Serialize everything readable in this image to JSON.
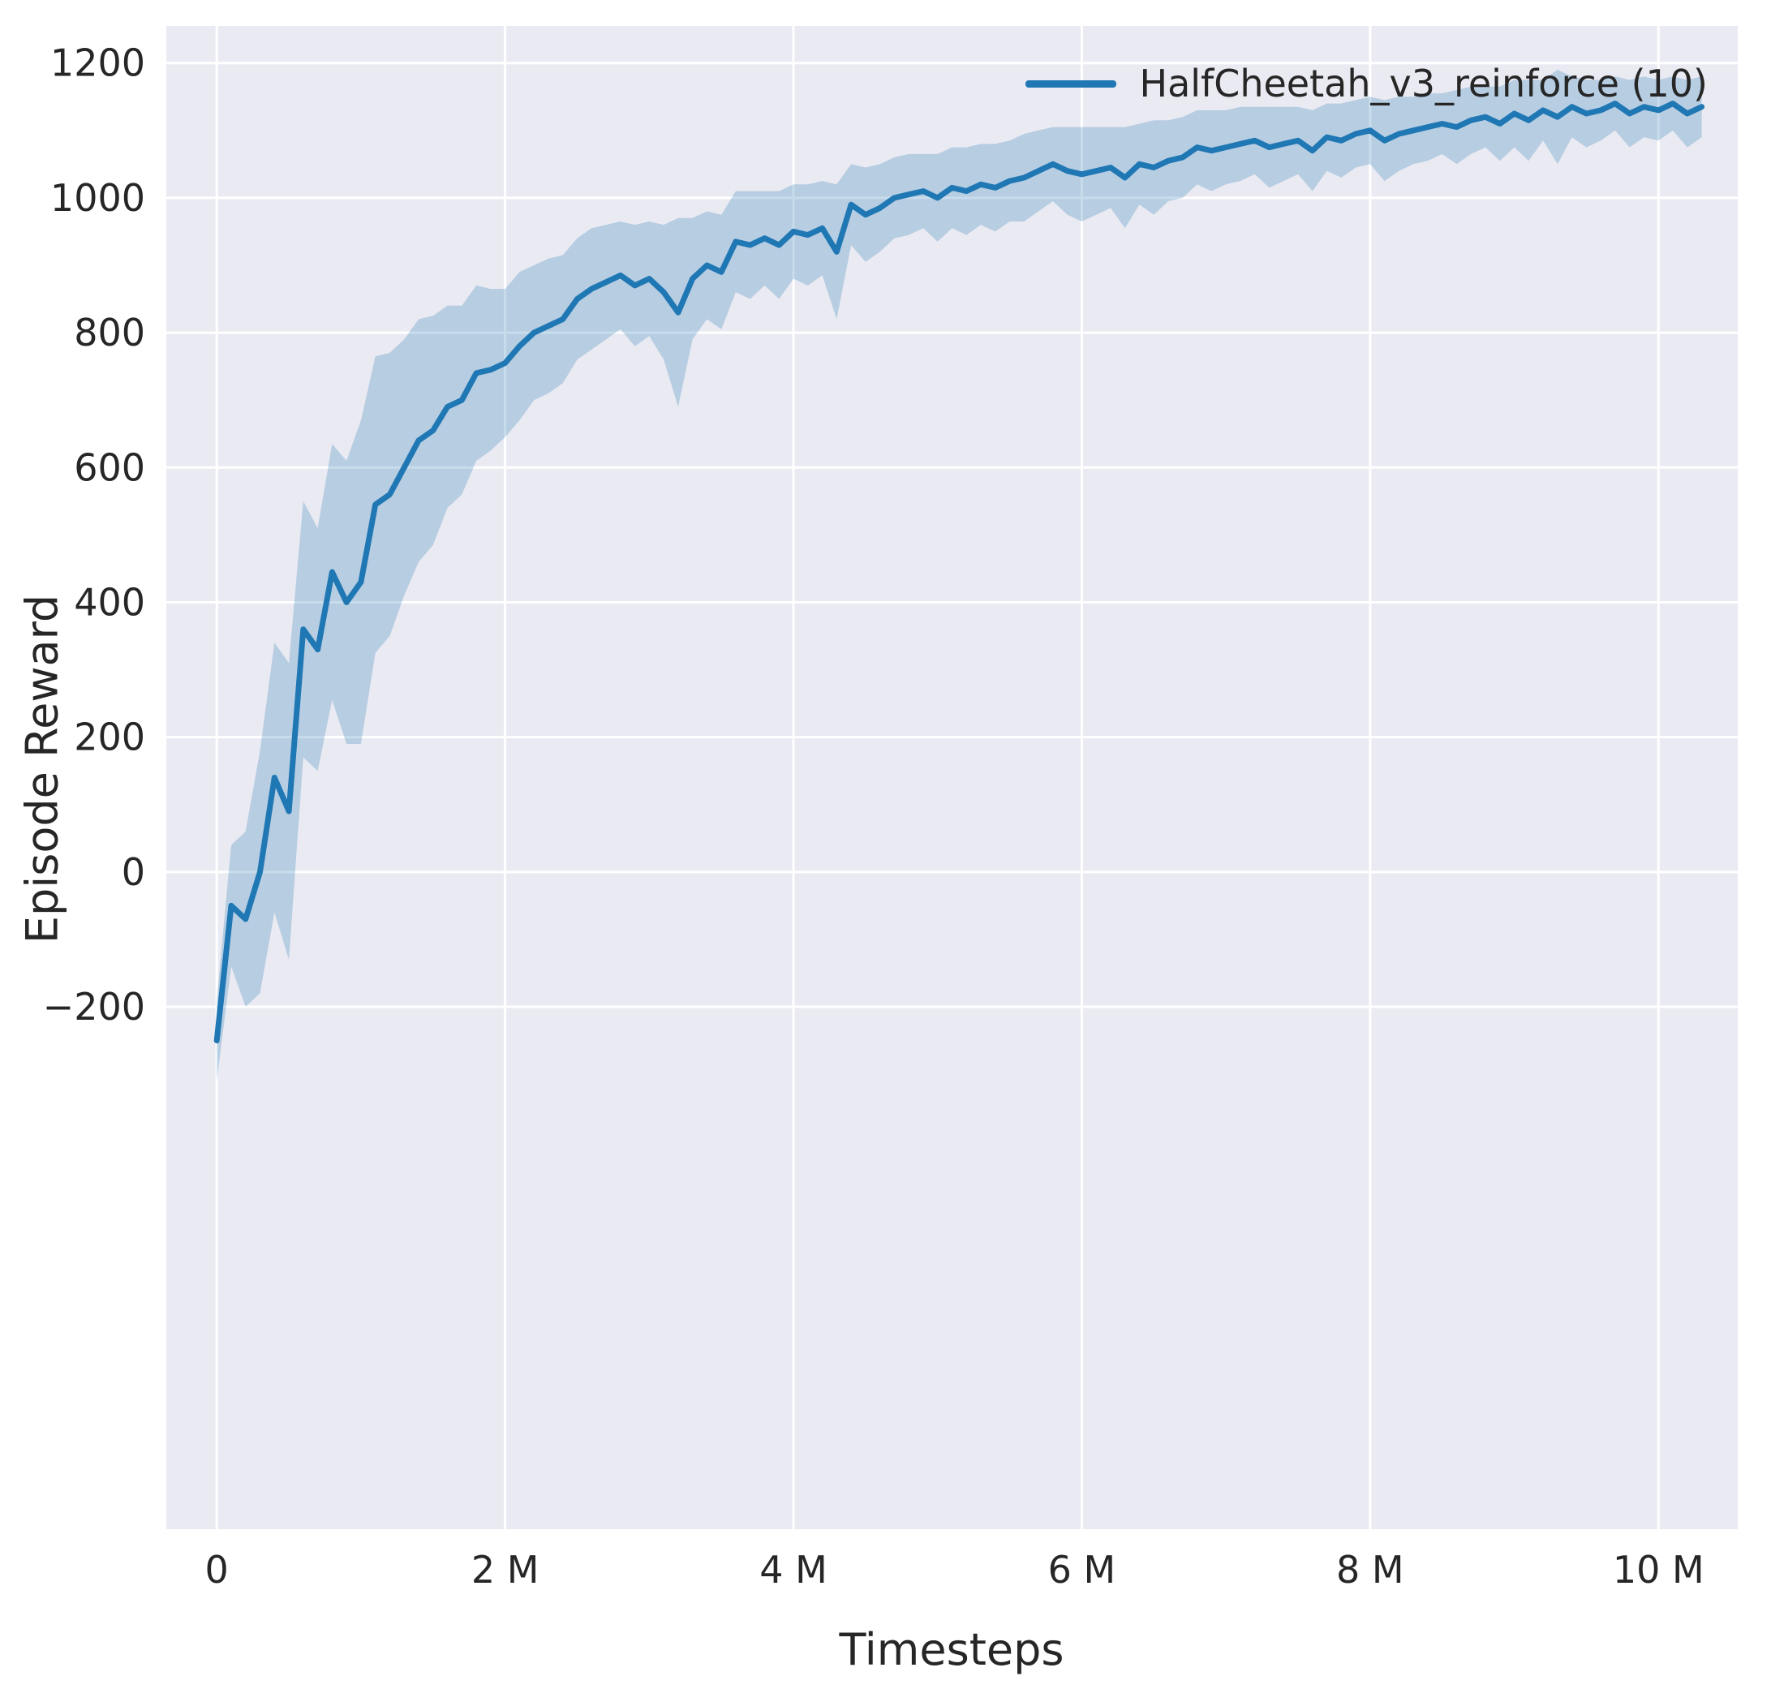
{
  "figure": {
    "background": "#ffffff",
    "axes_background": "#eaeaf2",
    "grid_color": "#ffffff",
    "text_color": "#262626"
  },
  "chart_data": {
    "type": "line",
    "title": "",
    "xlabel": "Timesteps",
    "ylabel": "Episode Reward",
    "x_unit": "millions of timesteps",
    "grid": true,
    "legend_position": "upper right",
    "xlim": [
      -0.35,
      10.55
    ],
    "ylim": [
      -975,
      1255
    ],
    "xticks": [
      {
        "value": 0,
        "label": "0"
      },
      {
        "value": 2,
        "label": "2 M"
      },
      {
        "value": 4,
        "label": "4 M"
      },
      {
        "value": 6,
        "label": "6 M"
      },
      {
        "value": 8,
        "label": "8 M"
      },
      {
        "value": 10,
        "label": "10 M"
      }
    ],
    "yticks": [
      {
        "value": -200,
        "label": "−200"
      },
      {
        "value": 0,
        "label": "0"
      },
      {
        "value": 200,
        "label": "200"
      },
      {
        "value": 400,
        "label": "400"
      },
      {
        "value": 600,
        "label": "600"
      },
      {
        "value": 800,
        "label": "800"
      },
      {
        "value": 1000,
        "label": "1000"
      },
      {
        "value": 1200,
        "label": "1200"
      }
    ],
    "series": [
      {
        "name": "HalfCheetah_v3_reinforce (10)",
        "color": "#1f77b4",
        "band_color": "#1f77b4",
        "band_opacity": 0.25,
        "x": [
          0,
          0.1,
          0.2,
          0.3,
          0.4,
          0.5,
          0.6,
          0.7,
          0.8,
          0.9,
          1,
          1.1,
          1.2,
          1.3,
          1.4,
          1.5,
          1.6,
          1.7,
          1.8,
          1.9,
          2,
          2.1,
          2.2,
          2.3,
          2.4,
          2.5,
          2.6,
          2.7,
          2.8,
          2.9,
          3,
          3.1,
          3.2,
          3.3,
          3.4,
          3.5,
          3.6,
          3.7,
          3.8,
          3.9,
          4,
          4.1,
          4.2,
          4.3,
          4.4,
          4.5,
          4.6,
          4.7,
          4.8,
          4.9,
          5,
          5.1,
          5.2,
          5.3,
          5.4,
          5.5,
          5.6,
          5.7,
          5.8,
          5.9,
          6,
          6.1,
          6.2,
          6.3,
          6.4,
          6.5,
          6.6,
          6.7,
          6.8,
          6.9,
          7,
          7.1,
          7.2,
          7.3,
          7.4,
          7.5,
          7.6,
          7.7,
          7.8,
          7.9,
          8,
          8.1,
          8.2,
          8.3,
          8.4,
          8.5,
          8.6,
          8.7,
          8.8,
          8.9,
          9,
          9.1,
          9.2,
          9.3,
          9.4,
          9.5,
          9.6,
          9.7,
          9.8,
          9.9,
          10,
          10.1,
          10.2,
          10.3
        ],
        "y": [
          -250,
          -50,
          -70,
          0,
          140,
          90,
          360,
          330,
          445,
          400,
          430,
          545,
          560,
          600,
          640,
          655,
          690,
          700,
          740,
          745,
          755,
          780,
          800,
          810,
          820,
          850,
          865,
          875,
          885,
          870,
          880,
          860,
          830,
          880,
          900,
          890,
          935,
          930,
          940,
          930,
          950,
          945,
          955,
          920,
          990,
          975,
          985,
          1000,
          1005,
          1010,
          1000,
          1015,
          1010,
          1020,
          1015,
          1025,
          1030,
          1040,
          1050,
          1040,
          1035,
          1040,
          1045,
          1030,
          1050,
          1045,
          1055,
          1060,
          1075,
          1070,
          1075,
          1080,
          1085,
          1075,
          1080,
          1085,
          1070,
          1090,
          1085,
          1095,
          1100,
          1085,
          1095,
          1100,
          1105,
          1110,
          1105,
          1115,
          1120,
          1110,
          1125,
          1115,
          1130,
          1120,
          1135,
          1125,
          1130,
          1140,
          1125,
          1135,
          1130,
          1140,
          1125,
          1135
        ],
        "band_halfwidth": [
          60,
          90,
          130,
          180,
          200,
          220,
          190,
          180,
          190,
          210,
          240,
          220,
          210,
          190,
          180,
          170,
          150,
          140,
          130,
          120,
          110,
          110,
          100,
          100,
          95,
          90,
          90,
          85,
          80,
          90,
          85,
          100,
          140,
          90,
          80,
          85,
          75,
          80,
          70,
          80,
          70,
          75,
          70,
          100,
          60,
          70,
          65,
          60,
          60,
          55,
          65,
          60,
          65,
          60,
          65,
          60,
          65,
          60,
          55,
          65,
          70,
          65,
          60,
          75,
          60,
          70,
          60,
          60,
          55,
          60,
          55,
          55,
          50,
          60,
          55,
          50,
          60,
          50,
          55,
          50,
          50,
          60,
          55,
          50,
          50,
          45,
          55,
          50,
          45,
          55,
          50,
          60,
          45,
          70,
          45,
          50,
          45,
          40,
          50,
          45,
          45,
          40,
          50,
          45
        ]
      }
    ]
  }
}
